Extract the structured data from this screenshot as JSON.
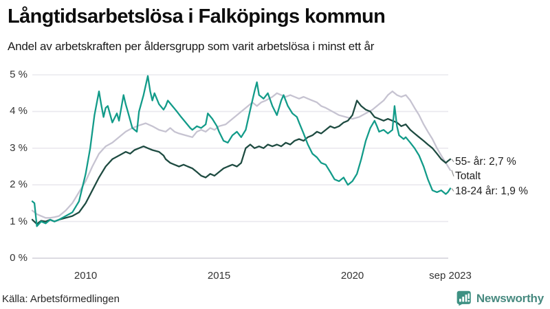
{
  "header": {
    "title": "Långtidsarbetslösa i Falköpings kommun",
    "subtitle": "Andel av arbetskraften per åldersgrupp som varit arbetslösa i minst ett år"
  },
  "footer": {
    "source": "Källa: Arbetsförmedlingen",
    "brand_name": "Newsworthy",
    "brand_color": "#46897f",
    "brand_icon": "newsworthy-bar-chart-bubble-icon",
    "brand_icon_color": "#3e9183"
  },
  "chart_data": {
    "type": "line",
    "title": "Långtidsarbetslösa i Falköpings kommun",
    "subtitle": "Andel av arbetskraften per åldersgrupp som varit arbetslösa i minst ett år",
    "unit": "%",
    "grid": true,
    "legend_position": "end-of-line",
    "colors": {
      "grid": "#e9e8ee",
      "zero_line": "#dcdbe2",
      "leader": "#8d8d8d"
    },
    "x_axis": {
      "range": [
        2008.0,
        2023.67
      ],
      "ticks": [
        {
          "t": 2010,
          "label": "2010"
        },
        {
          "t": 2015,
          "label": "2015"
        },
        {
          "t": 2020,
          "label": "2020"
        },
        {
          "t": 2023.67,
          "label": "sep 2023"
        }
      ]
    },
    "y_axis": {
      "range": [
        0,
        5
      ],
      "ticks": [
        {
          "v": 5,
          "label": "5 %"
        },
        {
          "v": 4,
          "label": "4 %"
        },
        {
          "v": 3,
          "label": "3 %"
        },
        {
          "v": 2,
          "label": "2 %"
        },
        {
          "v": 1,
          "label": "1 %"
        },
        {
          "v": 0,
          "label": "0 %"
        }
      ]
    },
    "series": [
      {
        "name": "55- år",
        "end_label": "55- år: 2,7 %",
        "last_value": 2.7,
        "color": "#1e4b41",
        "points": [
          [
            2008.0,
            1.05
          ],
          [
            2008.17,
            0.93
          ],
          [
            2008.33,
            1.02
          ],
          [
            2008.5,
            1.0
          ],
          [
            2008.67,
            1.05
          ],
          [
            2008.83,
            1.0
          ],
          [
            2009.0,
            1.05
          ],
          [
            2009.25,
            1.1
          ],
          [
            2009.5,
            1.15
          ],
          [
            2009.75,
            1.25
          ],
          [
            2010.0,
            1.5
          ],
          [
            2010.25,
            1.85
          ],
          [
            2010.5,
            2.2
          ],
          [
            2010.75,
            2.5
          ],
          [
            2011.0,
            2.7
          ],
          [
            2011.25,
            2.8
          ],
          [
            2011.5,
            2.9
          ],
          [
            2011.67,
            2.85
          ],
          [
            2011.83,
            2.95
          ],
          [
            2012.0,
            3.0
          ],
          [
            2012.17,
            3.05
          ],
          [
            2012.33,
            3.0
          ],
          [
            2012.5,
            2.95
          ],
          [
            2012.75,
            2.9
          ],
          [
            2012.92,
            2.8
          ],
          [
            2013.0,
            2.7
          ],
          [
            2013.17,
            2.6
          ],
          [
            2013.33,
            2.55
          ],
          [
            2013.5,
            2.5
          ],
          [
            2013.67,
            2.55
          ],
          [
            2013.83,
            2.5
          ],
          [
            2014.0,
            2.45
          ],
          [
            2014.17,
            2.35
          ],
          [
            2014.33,
            2.25
          ],
          [
            2014.5,
            2.2
          ],
          [
            2014.67,
            2.3
          ],
          [
            2014.83,
            2.25
          ],
          [
            2015.0,
            2.35
          ],
          [
            2015.17,
            2.45
          ],
          [
            2015.33,
            2.5
          ],
          [
            2015.5,
            2.55
          ],
          [
            2015.67,
            2.5
          ],
          [
            2015.83,
            2.6
          ],
          [
            2016.0,
            3.0
          ],
          [
            2016.17,
            3.1
          ],
          [
            2016.33,
            3.0
          ],
          [
            2016.5,
            3.05
          ],
          [
            2016.67,
            3.0
          ],
          [
            2016.83,
            3.1
          ],
          [
            2017.0,
            3.05
          ],
          [
            2017.17,
            3.1
          ],
          [
            2017.33,
            3.05
          ],
          [
            2017.5,
            3.15
          ],
          [
            2017.67,
            3.1
          ],
          [
            2017.83,
            3.2
          ],
          [
            2018.0,
            3.25
          ],
          [
            2018.17,
            3.2
          ],
          [
            2018.33,
            3.3
          ],
          [
            2018.5,
            3.35
          ],
          [
            2018.67,
            3.45
          ],
          [
            2018.83,
            3.4
          ],
          [
            2019.0,
            3.5
          ],
          [
            2019.17,
            3.6
          ],
          [
            2019.33,
            3.55
          ],
          [
            2019.5,
            3.6
          ],
          [
            2019.67,
            3.7
          ],
          [
            2019.83,
            3.75
          ],
          [
            2020.0,
            3.9
          ],
          [
            2020.17,
            4.3
          ],
          [
            2020.33,
            4.15
          ],
          [
            2020.5,
            4.05
          ],
          [
            2020.67,
            4.0
          ],
          [
            2020.83,
            3.85
          ],
          [
            2021.0,
            3.8
          ],
          [
            2021.17,
            3.75
          ],
          [
            2021.33,
            3.8
          ],
          [
            2021.5,
            3.75
          ],
          [
            2021.67,
            3.7
          ],
          [
            2021.83,
            3.6
          ],
          [
            2022.0,
            3.65
          ],
          [
            2022.17,
            3.5
          ],
          [
            2022.33,
            3.4
          ],
          [
            2022.5,
            3.3
          ],
          [
            2022.67,
            3.2
          ],
          [
            2022.83,
            3.1
          ],
          [
            2023.0,
            3.0
          ],
          [
            2023.17,
            2.85
          ],
          [
            2023.33,
            2.7
          ],
          [
            2023.5,
            2.6
          ],
          [
            2023.58,
            2.65
          ],
          [
            2023.67,
            2.7
          ]
        ]
      },
      {
        "name": "Totalt",
        "end_label": "Totalt",
        "last_value": 2.4,
        "color": "#c6c3d1",
        "points": [
          [
            2008.0,
            1.3
          ],
          [
            2008.17,
            1.2
          ],
          [
            2008.33,
            1.15
          ],
          [
            2008.5,
            1.1
          ],
          [
            2008.67,
            1.1
          ],
          [
            2008.83,
            1.12
          ],
          [
            2009.0,
            1.15
          ],
          [
            2009.25,
            1.3
          ],
          [
            2009.5,
            1.5
          ],
          [
            2009.75,
            1.8
          ],
          [
            2010.0,
            2.1
          ],
          [
            2010.25,
            2.5
          ],
          [
            2010.5,
            2.85
          ],
          [
            2010.75,
            3.05
          ],
          [
            2011.0,
            3.15
          ],
          [
            2011.25,
            3.3
          ],
          [
            2011.5,
            3.45
          ],
          [
            2011.75,
            3.55
          ],
          [
            2012.0,
            3.62
          ],
          [
            2012.25,
            3.68
          ],
          [
            2012.5,
            3.6
          ],
          [
            2012.75,
            3.5
          ],
          [
            2013.0,
            3.45
          ],
          [
            2013.17,
            3.55
          ],
          [
            2013.33,
            3.45
          ],
          [
            2013.5,
            3.4
          ],
          [
            2013.75,
            3.35
          ],
          [
            2014.0,
            3.3
          ],
          [
            2014.17,
            3.45
          ],
          [
            2014.33,
            3.5
          ],
          [
            2014.5,
            3.45
          ],
          [
            2014.67,
            3.55
          ],
          [
            2014.83,
            3.5
          ],
          [
            2015.0,
            3.6
          ],
          [
            2015.25,
            3.65
          ],
          [
            2015.5,
            3.8
          ],
          [
            2015.75,
            3.95
          ],
          [
            2016.0,
            4.1
          ],
          [
            2016.25,
            4.25
          ],
          [
            2016.42,
            4.15
          ],
          [
            2016.58,
            4.25
          ],
          [
            2016.75,
            4.3
          ],
          [
            2017.0,
            4.4
          ],
          [
            2017.17,
            4.5
          ],
          [
            2017.33,
            4.45
          ],
          [
            2017.5,
            4.4
          ],
          [
            2017.67,
            4.45
          ],
          [
            2017.83,
            4.4
          ],
          [
            2018.0,
            4.35
          ],
          [
            2018.17,
            4.4
          ],
          [
            2018.33,
            4.35
          ],
          [
            2018.5,
            4.3
          ],
          [
            2018.67,
            4.25
          ],
          [
            2018.83,
            4.15
          ],
          [
            2019.0,
            4.1
          ],
          [
            2019.25,
            4.0
          ],
          [
            2019.5,
            3.9
          ],
          [
            2019.75,
            3.85
          ],
          [
            2020.0,
            3.8
          ],
          [
            2020.25,
            3.85
          ],
          [
            2020.5,
            3.95
          ],
          [
            2020.75,
            4.05
          ],
          [
            2021.0,
            4.2
          ],
          [
            2021.17,
            4.3
          ],
          [
            2021.33,
            4.45
          ],
          [
            2021.5,
            4.55
          ],
          [
            2021.67,
            4.45
          ],
          [
            2021.83,
            4.4
          ],
          [
            2022.0,
            4.45
          ],
          [
            2022.17,
            4.3
          ],
          [
            2022.33,
            4.1
          ],
          [
            2022.5,
            3.9
          ],
          [
            2022.67,
            3.65
          ],
          [
            2022.83,
            3.45
          ],
          [
            2023.0,
            3.25
          ],
          [
            2023.17,
            3.0
          ],
          [
            2023.33,
            2.8
          ],
          [
            2023.5,
            2.6
          ],
          [
            2023.67,
            2.4
          ]
        ]
      },
      {
        "name": "18-24 år",
        "end_label": "18-24 år: 1,9 %",
        "last_value": 1.9,
        "color": "#129b89",
        "points": [
          [
            2008.0,
            1.55
          ],
          [
            2008.08,
            1.5
          ],
          [
            2008.17,
            0.87
          ],
          [
            2008.33,
            1.0
          ],
          [
            2008.5,
            0.95
          ],
          [
            2008.67,
            1.05
          ],
          [
            2008.83,
            1.0
          ],
          [
            2009.0,
            1.05
          ],
          [
            2009.25,
            1.15
          ],
          [
            2009.5,
            1.25
          ],
          [
            2009.75,
            1.55
          ],
          [
            2010.0,
            2.3
          ],
          [
            2010.17,
            3.0
          ],
          [
            2010.33,
            3.9
          ],
          [
            2010.5,
            4.55
          ],
          [
            2010.58,
            4.2
          ],
          [
            2010.67,
            3.85
          ],
          [
            2010.75,
            4.1
          ],
          [
            2010.83,
            4.15
          ],
          [
            2011.0,
            3.7
          ],
          [
            2011.17,
            3.95
          ],
          [
            2011.25,
            3.75
          ],
          [
            2011.42,
            4.45
          ],
          [
            2011.5,
            4.2
          ],
          [
            2011.58,
            4.0
          ],
          [
            2011.75,
            3.55
          ],
          [
            2011.92,
            3.45
          ],
          [
            2012.0,
            4.0
          ],
          [
            2012.17,
            4.45
          ],
          [
            2012.33,
            4.97
          ],
          [
            2012.42,
            4.55
          ],
          [
            2012.5,
            4.3
          ],
          [
            2012.58,
            4.5
          ],
          [
            2012.75,
            4.2
          ],
          [
            2012.92,
            4.05
          ],
          [
            2013.0,
            4.15
          ],
          [
            2013.08,
            4.3
          ],
          [
            2013.25,
            4.15
          ],
          [
            2013.42,
            4.0
          ],
          [
            2013.58,
            3.85
          ],
          [
            2013.75,
            3.7
          ],
          [
            2013.92,
            3.55
          ],
          [
            2014.0,
            3.5
          ],
          [
            2014.17,
            3.6
          ],
          [
            2014.33,
            3.55
          ],
          [
            2014.5,
            3.65
          ],
          [
            2014.58,
            3.95
          ],
          [
            2014.75,
            3.8
          ],
          [
            2014.92,
            3.6
          ],
          [
            2015.0,
            3.45
          ],
          [
            2015.17,
            3.2
          ],
          [
            2015.33,
            3.15
          ],
          [
            2015.5,
            3.35
          ],
          [
            2015.67,
            3.45
          ],
          [
            2015.83,
            3.3
          ],
          [
            2016.0,
            3.5
          ],
          [
            2016.17,
            4.05
          ],
          [
            2016.33,
            4.55
          ],
          [
            2016.42,
            4.8
          ],
          [
            2016.5,
            4.45
          ],
          [
            2016.67,
            4.35
          ],
          [
            2016.83,
            4.5
          ],
          [
            2017.0,
            4.15
          ],
          [
            2017.17,
            3.9
          ],
          [
            2017.33,
            4.3
          ],
          [
            2017.42,
            4.45
          ],
          [
            2017.58,
            4.15
          ],
          [
            2017.75,
            3.95
          ],
          [
            2017.92,
            3.85
          ],
          [
            2018.0,
            3.7
          ],
          [
            2018.17,
            3.4
          ],
          [
            2018.33,
            3.1
          ],
          [
            2018.5,
            2.85
          ],
          [
            2018.67,
            2.75
          ],
          [
            2018.83,
            2.6
          ],
          [
            2019.0,
            2.55
          ],
          [
            2019.17,
            2.35
          ],
          [
            2019.33,
            2.15
          ],
          [
            2019.5,
            2.1
          ],
          [
            2019.67,
            2.2
          ],
          [
            2019.83,
            2.0
          ],
          [
            2020.0,
            2.1
          ],
          [
            2020.17,
            2.3
          ],
          [
            2020.33,
            2.7
          ],
          [
            2020.5,
            3.2
          ],
          [
            2020.67,
            3.55
          ],
          [
            2020.83,
            3.75
          ],
          [
            2020.92,
            3.6
          ],
          [
            2021.0,
            3.45
          ],
          [
            2021.17,
            3.5
          ],
          [
            2021.33,
            3.4
          ],
          [
            2021.5,
            3.5
          ],
          [
            2021.58,
            4.15
          ],
          [
            2021.67,
            3.6
          ],
          [
            2021.75,
            3.35
          ],
          [
            2021.92,
            3.25
          ],
          [
            2022.0,
            3.3
          ],
          [
            2022.17,
            3.15
          ],
          [
            2022.33,
            3.0
          ],
          [
            2022.5,
            2.8
          ],
          [
            2022.67,
            2.5
          ],
          [
            2022.83,
            2.15
          ],
          [
            2023.0,
            1.85
          ],
          [
            2023.17,
            1.8
          ],
          [
            2023.33,
            1.85
          ],
          [
            2023.5,
            1.75
          ],
          [
            2023.58,
            1.8
          ],
          [
            2023.67,
            1.9
          ]
        ]
      }
    ]
  }
}
